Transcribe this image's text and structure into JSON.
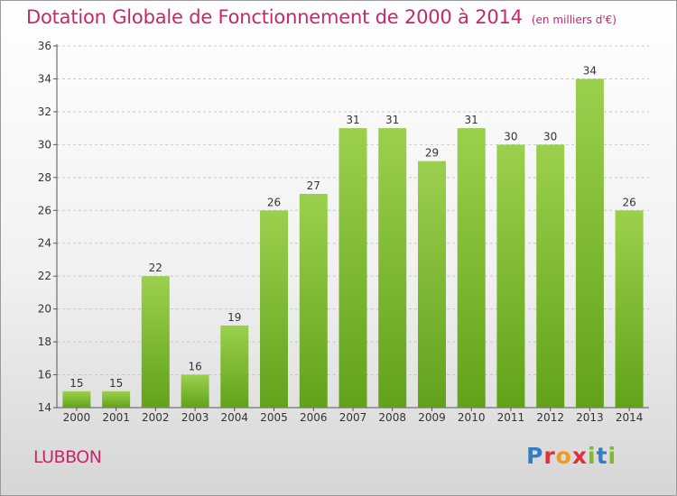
{
  "title": "Dotation Globale de Fonctionnement de 2000 à 2014",
  "subtitle": "(en milliers d'€)",
  "place": "LUBBON",
  "brand": {
    "text": "Proxiti",
    "colors": [
      "#2f7fc8",
      "#e2303a",
      "#f39a1b",
      "#7dbb2c"
    ]
  },
  "colors": {
    "title": "#c8266d",
    "bar_top": "#9bd04d",
    "bar_bottom": "#62a21a",
    "grid": "#c8c8c8"
  },
  "chart_data": {
    "type": "bar",
    "title": "Dotation Globale de Fonctionnement de 2000 à 2014",
    "subtitle": "(en milliers d'€)",
    "xlabel": "",
    "ylabel": "",
    "categories": [
      "2000",
      "2001",
      "2002",
      "2003",
      "2004",
      "2005",
      "2006",
      "2007",
      "2008",
      "2009",
      "2010",
      "2011",
      "2012",
      "2013",
      "2014"
    ],
    "values": [
      15,
      15,
      22,
      16,
      19,
      26,
      27,
      31,
      31,
      29,
      31,
      30,
      30,
      34,
      26
    ],
    "ylim": [
      14,
      36
    ],
    "yticks": [
      14,
      16,
      18,
      20,
      22,
      24,
      26,
      28,
      30,
      32,
      34,
      36
    ],
    "grid": "horizontal dashed",
    "legend": "none"
  }
}
